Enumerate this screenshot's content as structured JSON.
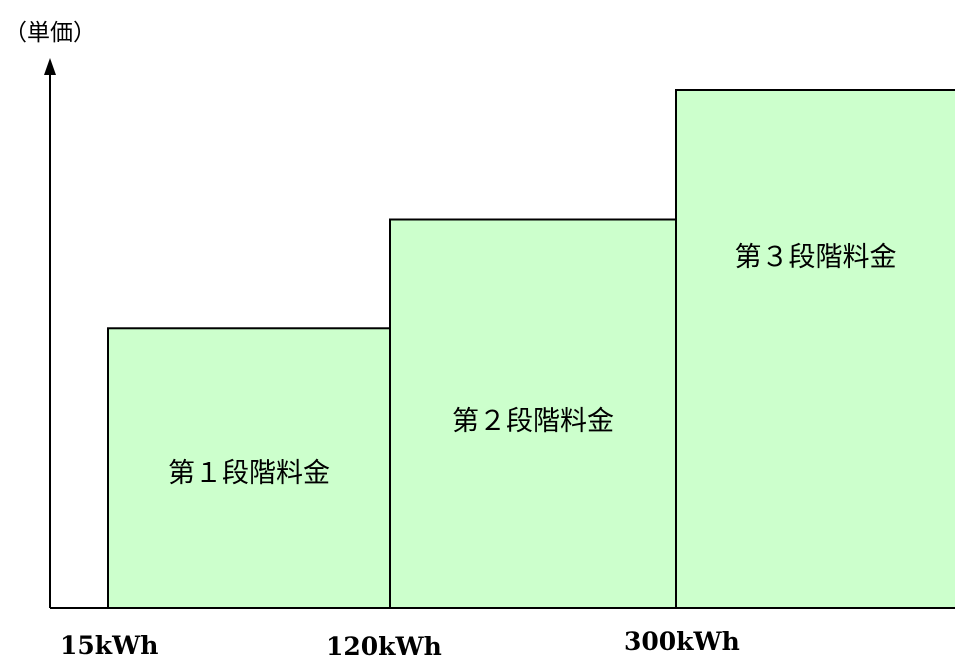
{
  "chart_data": {
    "type": "bar",
    "ylabel": "（単価）",
    "tiers": [
      {
        "label": "第１段階料金",
        "from_kwh": 15,
        "to_kwh": 120,
        "relative_price": 0.54
      },
      {
        "label": "第２段階料金",
        "from_kwh": 120,
        "to_kwh": 300,
        "relative_price": 0.75
      },
      {
        "label": "第３段階料金",
        "from_kwh": 300,
        "to_kwh": null,
        "relative_price": 1.0
      }
    ],
    "x_ticks": [
      "15kWh",
      "120kWh",
      "300kWh"
    ],
    "grid": false,
    "legend": "none",
    "colors": {
      "fill": "#ccffcc",
      "stroke": "#000000",
      "axis": "#000000"
    }
  }
}
